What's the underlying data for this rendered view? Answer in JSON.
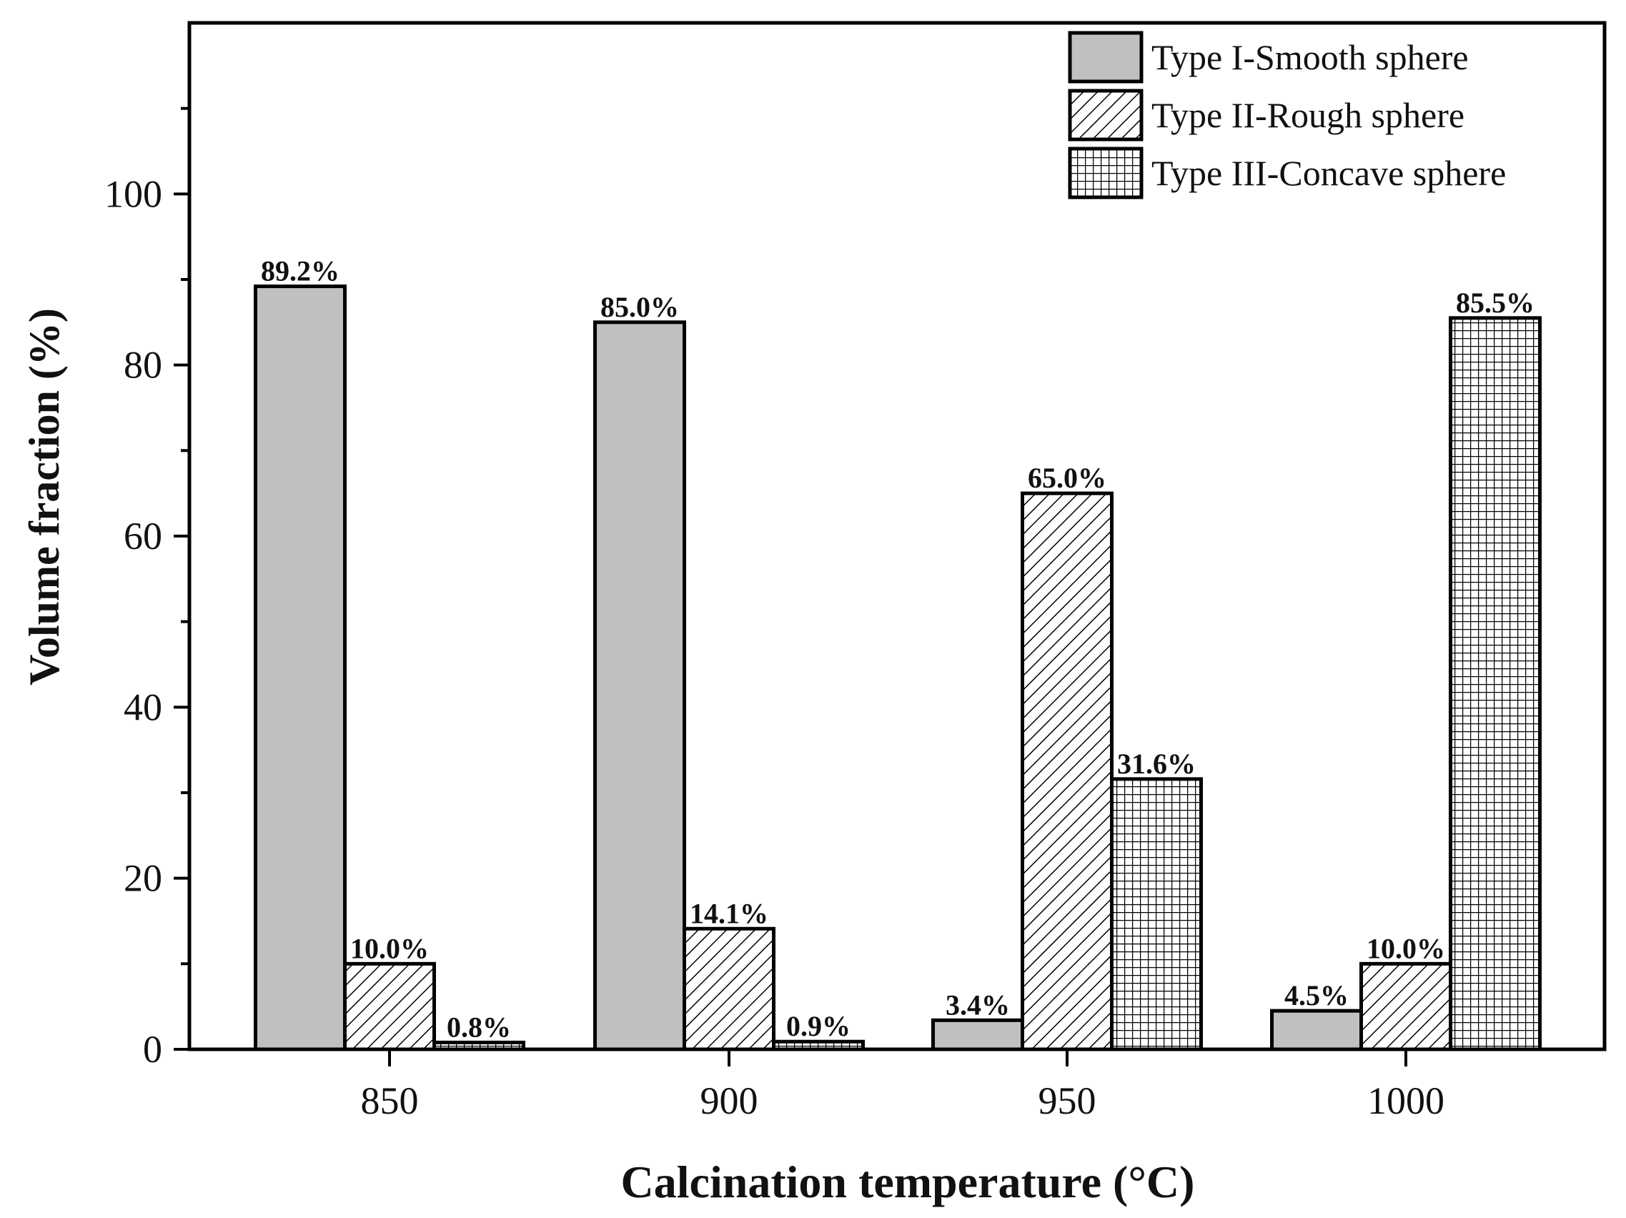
{
  "chart_data": {
    "type": "bar",
    "title": "",
    "xlabel": "Calcination temperature (°C)",
    "ylabel": "Volume fraction  (%)",
    "ylim": [
      0,
      120
    ],
    "yticks": [
      0,
      20,
      40,
      60,
      80,
      100
    ],
    "categories": [
      "850",
      "900",
      "950",
      "1000"
    ],
    "legend_position": "top-right",
    "series": [
      {
        "name": "Type I-Smooth sphere",
        "pattern": "solid",
        "color": "#c0c0c0",
        "values": [
          89.2,
          85.0,
          3.4,
          4.5
        ],
        "labels": [
          "89.2%",
          "85.0%",
          "3.4%",
          "4.5%"
        ]
      },
      {
        "name": "Type II-Rough sphere",
        "pattern": "diagonal",
        "color": "#ffffff",
        "values": [
          10.0,
          14.1,
          65.0,
          10.0
        ],
        "labels": [
          "10.0%",
          "14.1%",
          "65.0%",
          "10.0%"
        ]
      },
      {
        "name": "Type III-Concave sphere",
        "pattern": "grid",
        "color": "#ffffff",
        "values": [
          0.8,
          0.9,
          31.6,
          85.5
        ],
        "labels": [
          "0.8%",
          "0.9%",
          "31.6%",
          "85.5%"
        ]
      }
    ]
  }
}
